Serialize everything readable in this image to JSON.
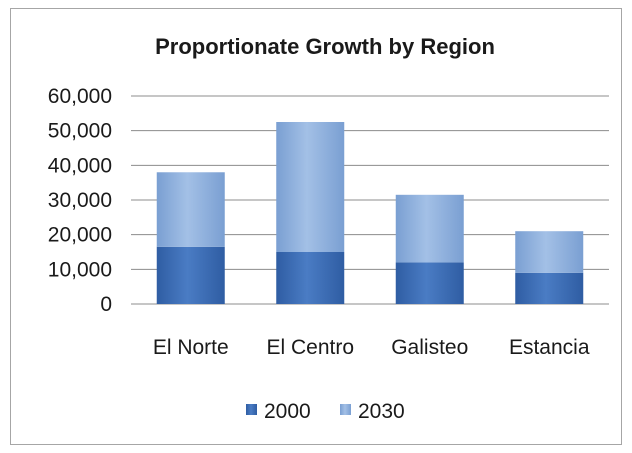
{
  "chart_data": {
    "type": "bar",
    "stacked": true,
    "title": "Proportionate Growth by Region",
    "xlabel": "",
    "ylabel": "",
    "categories": [
      "El Norte",
      "El Centro",
      "Galisteo",
      "Estancia"
    ],
    "series": [
      {
        "name": "2000",
        "values": [
          16500,
          15000,
          12000,
          9000
        ],
        "color": "#3f6eb5"
      },
      {
        "name": "2030",
        "values": [
          21500,
          37500,
          19500,
          12000
        ],
        "color": "#8fb0dc"
      }
    ],
    "ylim": [
      0,
      60000
    ],
    "yticks": [
      0,
      10000,
      20000,
      30000,
      40000,
      50000,
      60000
    ],
    "ytick_labels": [
      "0",
      "10,000",
      "20,000",
      "30,000",
      "40,000",
      "50,000",
      "60,000"
    ],
    "grid": true,
    "legend_position": "bottom"
  }
}
